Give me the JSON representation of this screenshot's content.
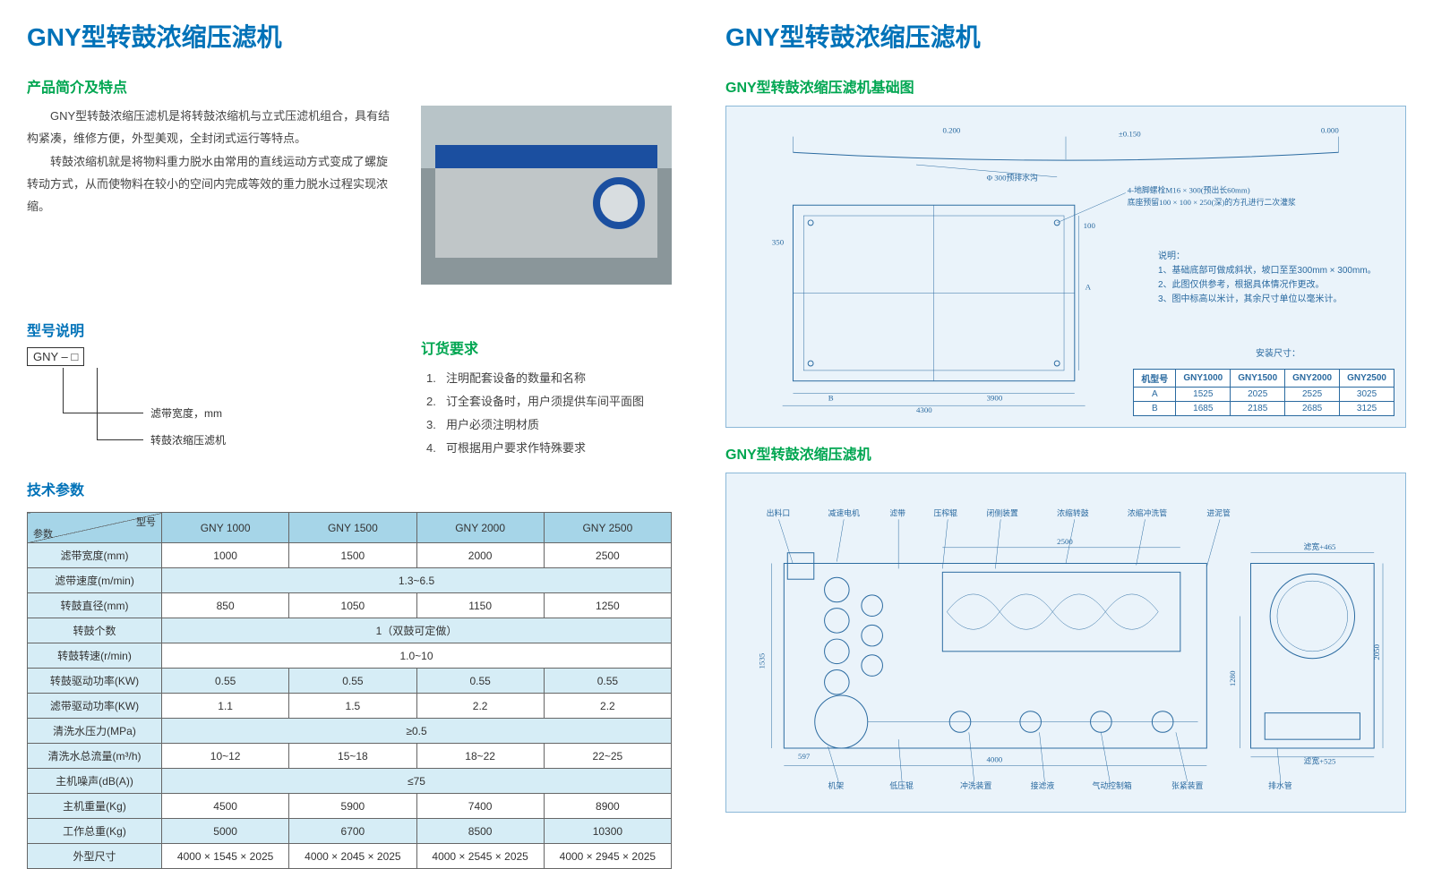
{
  "left": {
    "title": "GNY型转鼓浓缩压滤机",
    "intro_heading": "产品简介及特点",
    "intro_p1": "GNY型转鼓浓缩压滤机是将转鼓浓缩机与立式压滤机组合，具有结构紧凑，维修方便，外型美观，全封闭式运行等特点。",
    "intro_p2": "转鼓浓缩机就是将物料重力脱水由常用的直线运动方式变成了螺旋转动方式，从而使物料在较小的空间内完成等效的重力脱水过程实现浓缩。",
    "model_heading": "型号说明",
    "model_code": "GNY – □",
    "model_label1": "滤带宽度，mm",
    "model_label2": "转鼓浓缩压滤机",
    "order_heading": "订货要求",
    "order_items": [
      "注明配套设备的数量和名称",
      "订全套设备时，用户须提供车间平面图",
      "用户必须注明材质",
      "可根据用户要求作特殊要求"
    ],
    "spec_heading": "技术参数",
    "spec_table": {
      "header_tl": "型号",
      "header_br": "参数",
      "models": [
        "GNY 1000",
        "GNY 1500",
        "GNY 2000",
        "GNY 2500"
      ],
      "rows": [
        {
          "param": "滤带宽度(mm)",
          "vals": [
            "1000",
            "1500",
            "2000",
            "2500"
          ]
        },
        {
          "param": "滤带速度(m/min)",
          "span": "1.3~6.5"
        },
        {
          "param": "转鼓直径(mm)",
          "vals": [
            "850",
            "1050",
            "1150",
            "1250"
          ]
        },
        {
          "param": "转鼓个数",
          "span": "1（双鼓可定做）"
        },
        {
          "param": "转鼓转速(r/min)",
          "span": "1.0~10"
        },
        {
          "param": "转鼓驱动功率(KW)",
          "vals": [
            "0.55",
            "0.55",
            "0.55",
            "0.55"
          ]
        },
        {
          "param": "滤带驱动功率(KW)",
          "vals": [
            "1.1",
            "1.5",
            "2.2",
            "2.2"
          ]
        },
        {
          "param": "清洗水压力(MPa)",
          "span": "≥0.5"
        },
        {
          "param": "清洗水总流量(m³/h)",
          "vals": [
            "10~12",
            "15~18",
            "18~22",
            "22~25"
          ]
        },
        {
          "param": "主机噪声(dB(A))",
          "span": "≤75"
        },
        {
          "param": "主机重量(Kg)",
          "vals": [
            "4500",
            "5900",
            "7400",
            "8900"
          ]
        },
        {
          "param": "工作总重(Kg)",
          "vals": [
            "5000",
            "6700",
            "8500",
            "10300"
          ]
        },
        {
          "param": "外型尺寸",
          "vals": [
            "4000 × 1545 × 2025",
            "4000 × 2045 × 2025",
            "4000 × 2545 × 2025",
            "4000 × 2945 × 2025"
          ]
        }
      ]
    }
  },
  "right": {
    "title": "GNY型转鼓浓缩压滤机",
    "foundation_heading": "GNY型转鼓浓缩压滤机基础图",
    "foundation": {
      "dim_top1": "0.200",
      "dim_top2": "±0.150",
      "dim_top3": "0.000",
      "dim_drain": "Φ 300预排水沟",
      "bolt_note": "4-地脚螺栓M16 × 300(预出长60mm)",
      "pit_note": "底座预留100 × 100 × 250(深)的方孔进行二次灌浆",
      "dim_a_left": "350",
      "dim_100": "100",
      "dim_a_arrow": "A",
      "dim_b": "B",
      "dim_3900": "3900",
      "dim_4300": "4300",
      "notes_title": "说明：",
      "notes": [
        "1、基础底部可做成斜状，坡口至至300mm × 300mm。",
        "2、此图仅供参考，根据具体情况作更改。",
        "3、图中标高以米计，其余尺寸单位以毫米计。"
      ],
      "install_caption": "安装尺寸：",
      "install_header": [
        "机型号",
        "GNY1000",
        "GNY1500",
        "GNY2000",
        "GNY2500"
      ],
      "install_rows": [
        [
          "A",
          "1525",
          "2025",
          "2525",
          "3025"
        ],
        [
          "B",
          "1685",
          "2185",
          "2685",
          "3125"
        ]
      ]
    },
    "machine_heading": "GNY型转鼓浓缩压滤机",
    "machine_labels": {
      "l1": "出料口",
      "l2": "减速电机",
      "l3": "滤带",
      "l4": "压榨辊",
      "l5": "闭侧装置",
      "l6": "浓缩转鼓",
      "l7": "浓缩冲洗管",
      "l8": "进泥管",
      "b1": "机架",
      "b2": "低压辊",
      "b3": "冲洗装置",
      "b4": "接滤液",
      "b5": "气动控制箱",
      "b6": "张紧装置",
      "b7": "排水管",
      "dim_597": "597",
      "dim_1535": "1535",
      "dim_4000": "4000",
      "dim_2500": "2500",
      "dim_2050": "2050",
      "dim_1280": "1280",
      "dim_end1": "滤宽+465",
      "dim_end2": "滤宽+525"
    }
  }
}
